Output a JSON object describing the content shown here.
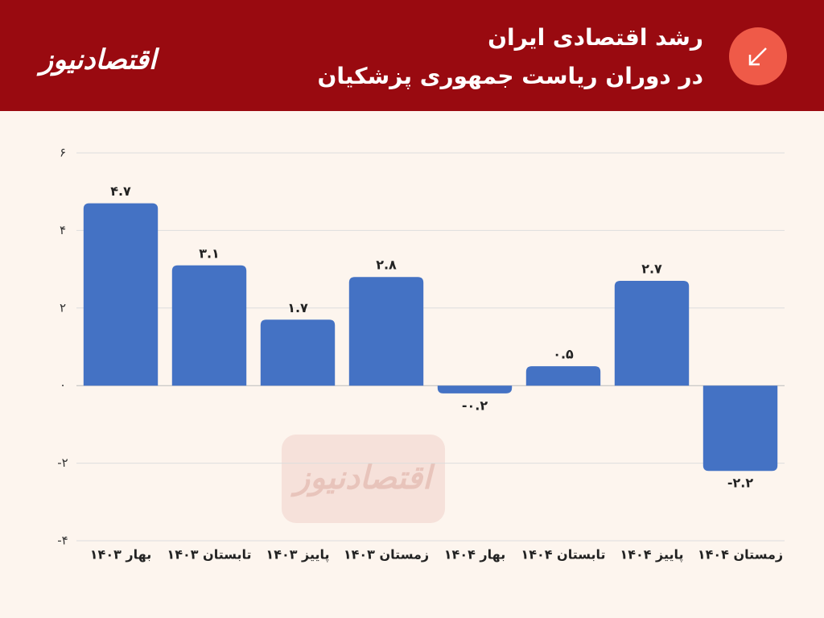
{
  "chart_data": {
    "type": "bar",
    "brand": "اقتصادنیوز",
    "title": "رشد اقتصادی ایران",
    "subtitle": "در دوران ریاست جمهوری پزشکیان",
    "categories": [
      "بهار ۱۴۰۳",
      "تابستان ۱۴۰۳",
      "پاییز ۱۴۰۳",
      "زمستان ۱۴۰۳",
      "بهار ۱۴۰۴",
      "تابستان ۱۴۰۴",
      "پاییز ۱۴۰۴",
      "زمستان ۱۴۰۴"
    ],
    "values": [
      4.7,
      3.1,
      1.7,
      2.8,
      -0.2,
      0.5,
      2.7,
      -2.2
    ],
    "value_labels": [
      "۴.۷",
      "۳.۱",
      "۱.۷",
      "۲.۸",
      "-۰.۲",
      "۰.۵",
      "۲.۷",
      "-۲.۲"
    ],
    "color": "#4472c4",
    "ylim": [
      -4,
      6
    ],
    "yticks": [
      {
        "value": -4,
        "label": "-۴"
      },
      {
        "value": -2,
        "label": "-۲"
      },
      {
        "value": 0,
        "label": "۰"
      },
      {
        "value": 2,
        "label": "۲"
      },
      {
        "value": 4,
        "label": "۴"
      },
      {
        "value": 6,
        "label": "۶"
      }
    ],
    "grid": true
  }
}
